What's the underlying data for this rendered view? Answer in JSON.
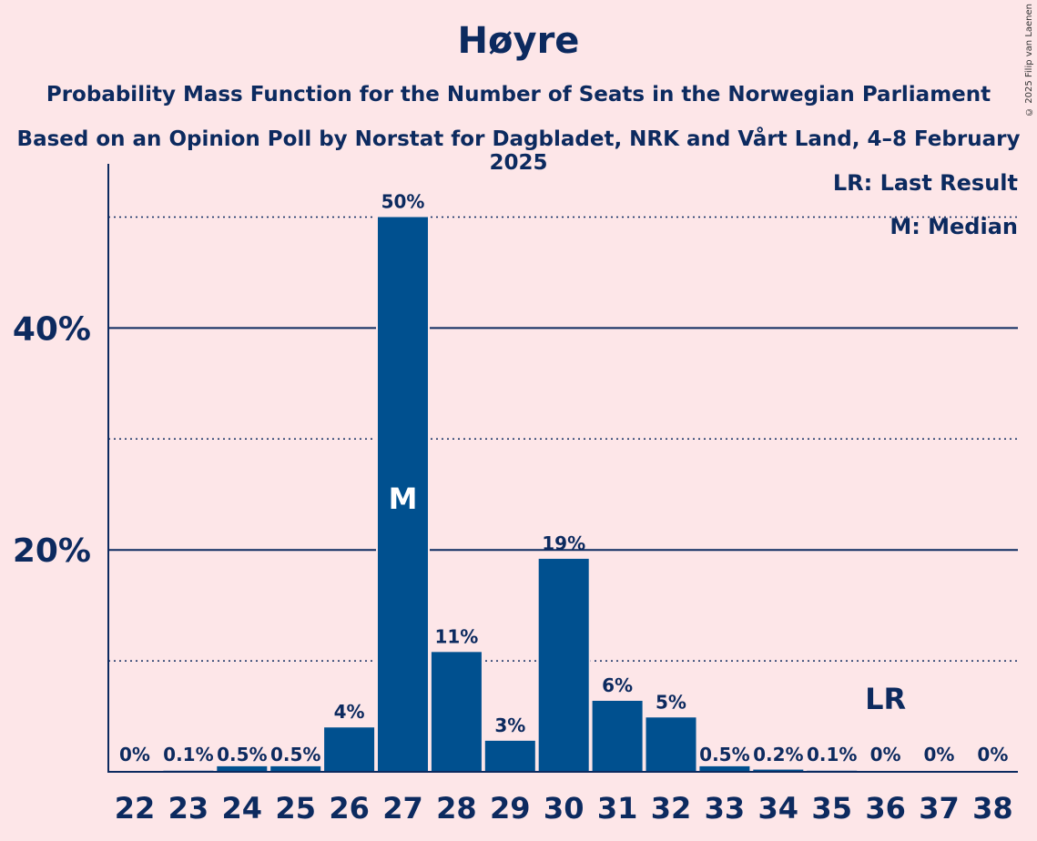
{
  "title": "Høyre",
  "subtitle1": "Probability Mass Function for the Number of Seats in the Norwegian Parliament",
  "subtitle2": "Based on an Opinion Poll by Norstat for Dagbladet, NRK and Vårt Land, 4–8 February 2025",
  "copyright": "© 2025 Filip van Laenen",
  "legend": {
    "lr": "LR: Last Result",
    "m": "M: Median"
  },
  "colors": {
    "bar": "#00508f",
    "text": "#0c2a5f",
    "background": "#fde6e8"
  },
  "chart_data": {
    "type": "bar",
    "categories": [
      "22",
      "23",
      "24",
      "25",
      "26",
      "27",
      "28",
      "29",
      "30",
      "31",
      "32",
      "33",
      "34",
      "35",
      "36",
      "37",
      "38"
    ],
    "values": [
      0,
      0.1,
      0.5,
      0.5,
      4,
      50,
      11,
      3,
      19,
      6,
      5,
      0.5,
      0.2,
      0.1,
      0,
      0,
      0
    ],
    "plotted_values": [
      0,
      0.1,
      0.5,
      0.5,
      4.0,
      50,
      10.8,
      2.8,
      19.2,
      6.4,
      4.9,
      0.5,
      0.2,
      0.1,
      0,
      0,
      0
    ],
    "labels": [
      "0%",
      "0.1%",
      "0.5%",
      "0.5%",
      "4%",
      "50%",
      "11%",
      "3%",
      "19%",
      "6%",
      "5%",
      "0.5%",
      "0.2%",
      "0.1%",
      "0%",
      "0%",
      "0%"
    ],
    "yticks": [
      20,
      40
    ],
    "ytick_labels": [
      "20%",
      "40%"
    ],
    "minor_gridlines": [
      10,
      30,
      50
    ],
    "ylim": [
      0,
      54.5
    ],
    "median_category": "27",
    "median_marker": "M",
    "last_result_category": "36",
    "last_result_marker": "LR"
  }
}
